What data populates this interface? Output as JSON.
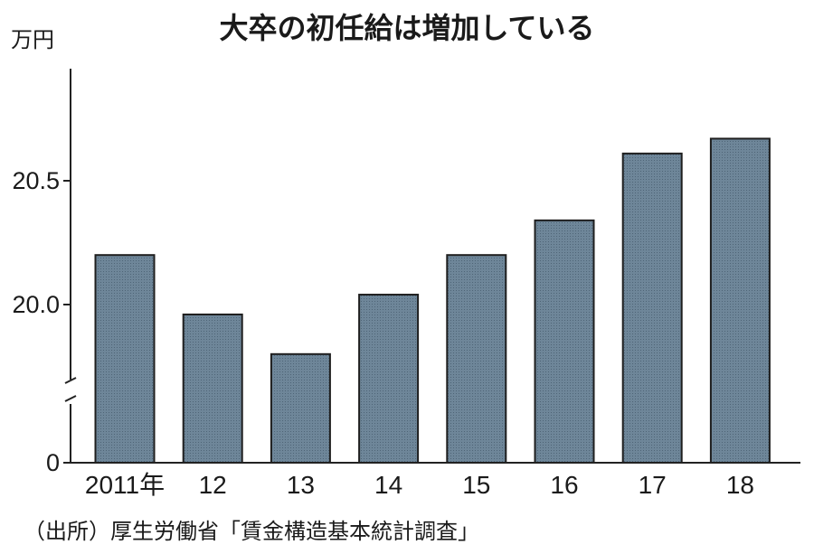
{
  "chart_data": {
    "type": "bar",
    "title": "大卒の初任給は増加している",
    "unit_label": "万円",
    "categories": [
      "2011年",
      "12",
      "13",
      "14",
      "15",
      "16",
      "17",
      "18"
    ],
    "values": [
      20.2,
      19.96,
      19.8,
      20.04,
      20.2,
      20.34,
      20.61,
      20.67
    ],
    "y_ticks": [
      {
        "value": 0,
        "label": "0"
      },
      {
        "value": 20.0,
        "label": "20.0"
      },
      {
        "value": 20.5,
        "label": "20.5"
      }
    ],
    "axis_break": true,
    "visible_range": [
      19.72,
      20.9
    ],
    "bar_color": "#6e8699",
    "source": "（出所）厚生労働省「賃金構造基本統計調査」"
  }
}
